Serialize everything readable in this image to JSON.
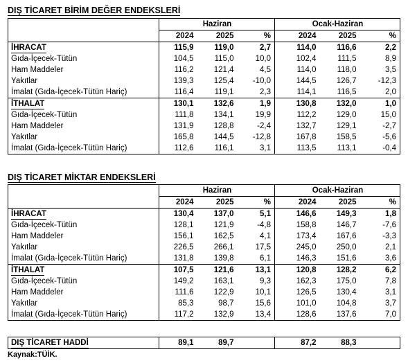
{
  "unit_value": {
    "title": "DIŞ TİCARET BİRİM DEĞER ENDEKSLERİ",
    "group1": "Haziran",
    "group2": "Ocak-Haziran",
    "col_2024": "2024",
    "col_2025": "2025",
    "col_pct": "%",
    "rows": [
      {
        "label": "İHRACAT",
        "v": [
          "115,9",
          "119,0",
          "2,7",
          "114,0",
          "116,6",
          "2,2"
        ]
      },
      {
        "label": "Gıda-İçecek-Tütün",
        "v": [
          "104,5",
          "115,0",
          "10,0",
          "102,4",
          "111,5",
          "8,9"
        ]
      },
      {
        "label": "Ham Maddeler",
        "v": [
          "116,2",
          "121,4",
          "4,5",
          "114,0",
          "118,0",
          "3,5"
        ]
      },
      {
        "label": "Yakıtlar",
        "v": [
          "139,3",
          "125,4",
          "-10,0",
          "144,5",
          "126,7",
          "-12,3"
        ]
      },
      {
        "label": "İmalat (Gıda-İçecek-Tütün Hariç)",
        "v": [
          "116,4",
          "119,1",
          "2,3",
          "114,1",
          "116,5",
          "2,0"
        ]
      },
      {
        "label": "İTHALAT",
        "v": [
          "130,1",
          "132,6",
          "1,9",
          "130,8",
          "132,0",
          "1,0"
        ]
      },
      {
        "label": "Gıda-İçecek-Tütün",
        "v": [
          "111,8",
          "134,1",
          "19,9",
          "112,2",
          "129,0",
          "15,0"
        ]
      },
      {
        "label": "Ham Maddeler",
        "v": [
          "131,9",
          "128,8",
          "-2,4",
          "132,7",
          "129,1",
          "-2,7"
        ]
      },
      {
        "label": "Yakıtlar",
        "v": [
          "165,8",
          "144,5",
          "-12,8",
          "167,8",
          "158,5",
          "-5,6"
        ]
      },
      {
        "label": "İmalat (Gıda-İçecek-Tütün Hariç)",
        "v": [
          "112,6",
          "116,1",
          "3,1",
          "113,5",
          "113,1",
          "-0,4"
        ]
      }
    ]
  },
  "quantity": {
    "title": "DIŞ TİCARET MİKTAR ENDEKSLERİ",
    "group1": "Haziran",
    "group2": "Ocak-Haziran",
    "col_2024": "2024",
    "col_2025": "2025",
    "col_pct": "%",
    "rows": [
      {
        "label": "İHRACAT",
        "v": [
          "130,4",
          "137,0",
          "5,1",
          "146,6",
          "149,3",
          "1,8"
        ]
      },
      {
        "label": "Gıda-İçecek-Tütün",
        "v": [
          "128,1",
          "121,9",
          "-4,8",
          "158,8",
          "146,7",
          "-7,6"
        ]
      },
      {
        "label": "Ham Maddeler",
        "v": [
          "156,1",
          "162,5",
          "4,1",
          "173,4",
          "167,6",
          "-3,3"
        ]
      },
      {
        "label": "Yakıtlar",
        "v": [
          "226,5",
          "266,1",
          "17,5",
          "245,0",
          "250,0",
          "2,1"
        ]
      },
      {
        "label": "İmalat (Gıda-İçecek-Tütün Hariç)",
        "v": [
          "131,8",
          "139,8",
          "6,1",
          "146,3",
          "151,6",
          "3,6"
        ]
      },
      {
        "label": "İTHALAT",
        "v": [
          "107,5",
          "121,6",
          "13,1",
          "120,8",
          "128,2",
          "6,2"
        ]
      },
      {
        "label": "Gıda-İçecek-Tütün",
        "v": [
          "149,2",
          "163,1",
          "9,3",
          "162,3",
          "175,0",
          "7,8"
        ]
      },
      {
        "label": "Ham Maddeler",
        "v": [
          "111,6",
          "122,9",
          "10,1",
          "126,5",
          "130,4",
          "3,1"
        ]
      },
      {
        "label": "Yakıtlar",
        "v": [
          "85,3",
          "98,7",
          "15,6",
          "101,0",
          "104,8",
          "3,7"
        ]
      },
      {
        "label": "İmalat (Gıda-İçecek-Tütün Hariç)",
        "v": [
          "117,2",
          "132,9",
          "13,4",
          "128,6",
          "137,6",
          "7,0"
        ]
      }
    ]
  },
  "terms_of_trade": {
    "label": "DIŞ TİCARET HADDİ",
    "v": [
      "89,1",
      "89,7",
      "",
      "87,2",
      "88,3",
      ""
    ]
  },
  "source": "Kaynak:TÜİK."
}
